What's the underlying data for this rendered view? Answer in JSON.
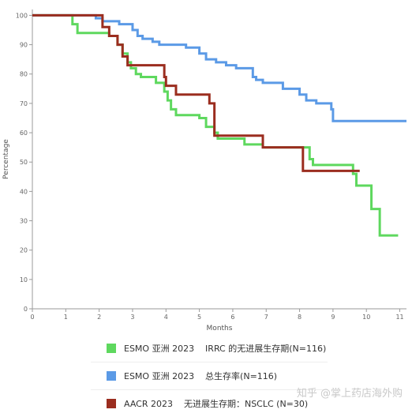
{
  "chart_data": {
    "type": "line",
    "step": true,
    "xlabel": "Months",
    "ylabel": "Percentage",
    "xlim": [
      0,
      11.2
    ],
    "ylim": [
      0,
      102
    ],
    "x_ticks": [
      0,
      1,
      2,
      3,
      4,
      5,
      6,
      7,
      8,
      9,
      10,
      11
    ],
    "y_ticks": [
      0,
      10,
      20,
      30,
      40,
      50,
      60,
      70,
      80,
      90,
      100
    ],
    "grid": false,
    "legend_position": "bottom",
    "series": [
      {
        "name": "ESMO 亚洲 2023    IRRC 的无进展生存期(N=116)",
        "color": "#5ed85e",
        "x": [
          0,
          1.2,
          1.35,
          2.3,
          2.55,
          2.7,
          2.85,
          2.95,
          3.1,
          3.25,
          3.7,
          3.95,
          4.05,
          4.15,
          4.3,
          5.0,
          5.2,
          5.45,
          5.55,
          6.35,
          6.9,
          8.3,
          8.4,
          9.6,
          9.7,
          10.15,
          10.4,
          10.95
        ],
        "y": [
          100,
          97,
          94,
          93,
          90,
          87,
          84,
          82,
          80,
          79,
          77,
          74,
          71,
          68,
          66,
          65,
          62,
          60,
          58,
          56,
          55,
          51,
          49,
          46,
          42,
          34,
          25,
          25
        ]
      },
      {
        "name": "ESMO 亚洲 2023    总生存率(N=116)",
        "color": "#5b9ae6",
        "x": [
          0,
          1.9,
          2.1,
          2.6,
          3.0,
          3.15,
          3.3,
          3.6,
          3.8,
          4.6,
          5.0,
          5.2,
          5.5,
          5.8,
          6.1,
          6.6,
          6.7,
          6.9,
          7.5,
          8.0,
          8.2,
          8.5,
          8.95,
          9.0,
          11.2
        ],
        "y": [
          100,
          99,
          98,
          97,
          95,
          93,
          92,
          91,
          90,
          89,
          87,
          85,
          84,
          83,
          82,
          79,
          78,
          77,
          75,
          73,
          71,
          70,
          68,
          64,
          64
        ]
      },
      {
        "name": "AACR 2023    无进展生存期：NSCLC (N=30)",
        "color": "#9b2d1f",
        "x": [
          0,
          2.1,
          2.3,
          2.55,
          2.7,
          2.85,
          3.95,
          4.0,
          4.3,
          5.3,
          5.45,
          6.9,
          8.1,
          9.8
        ],
        "y": [
          100,
          96,
          93,
          90,
          86,
          83,
          79,
          76,
          73,
          70,
          59,
          55,
          47,
          47
        ]
      }
    ]
  },
  "watermark": "知乎 @掌上药店海外购"
}
